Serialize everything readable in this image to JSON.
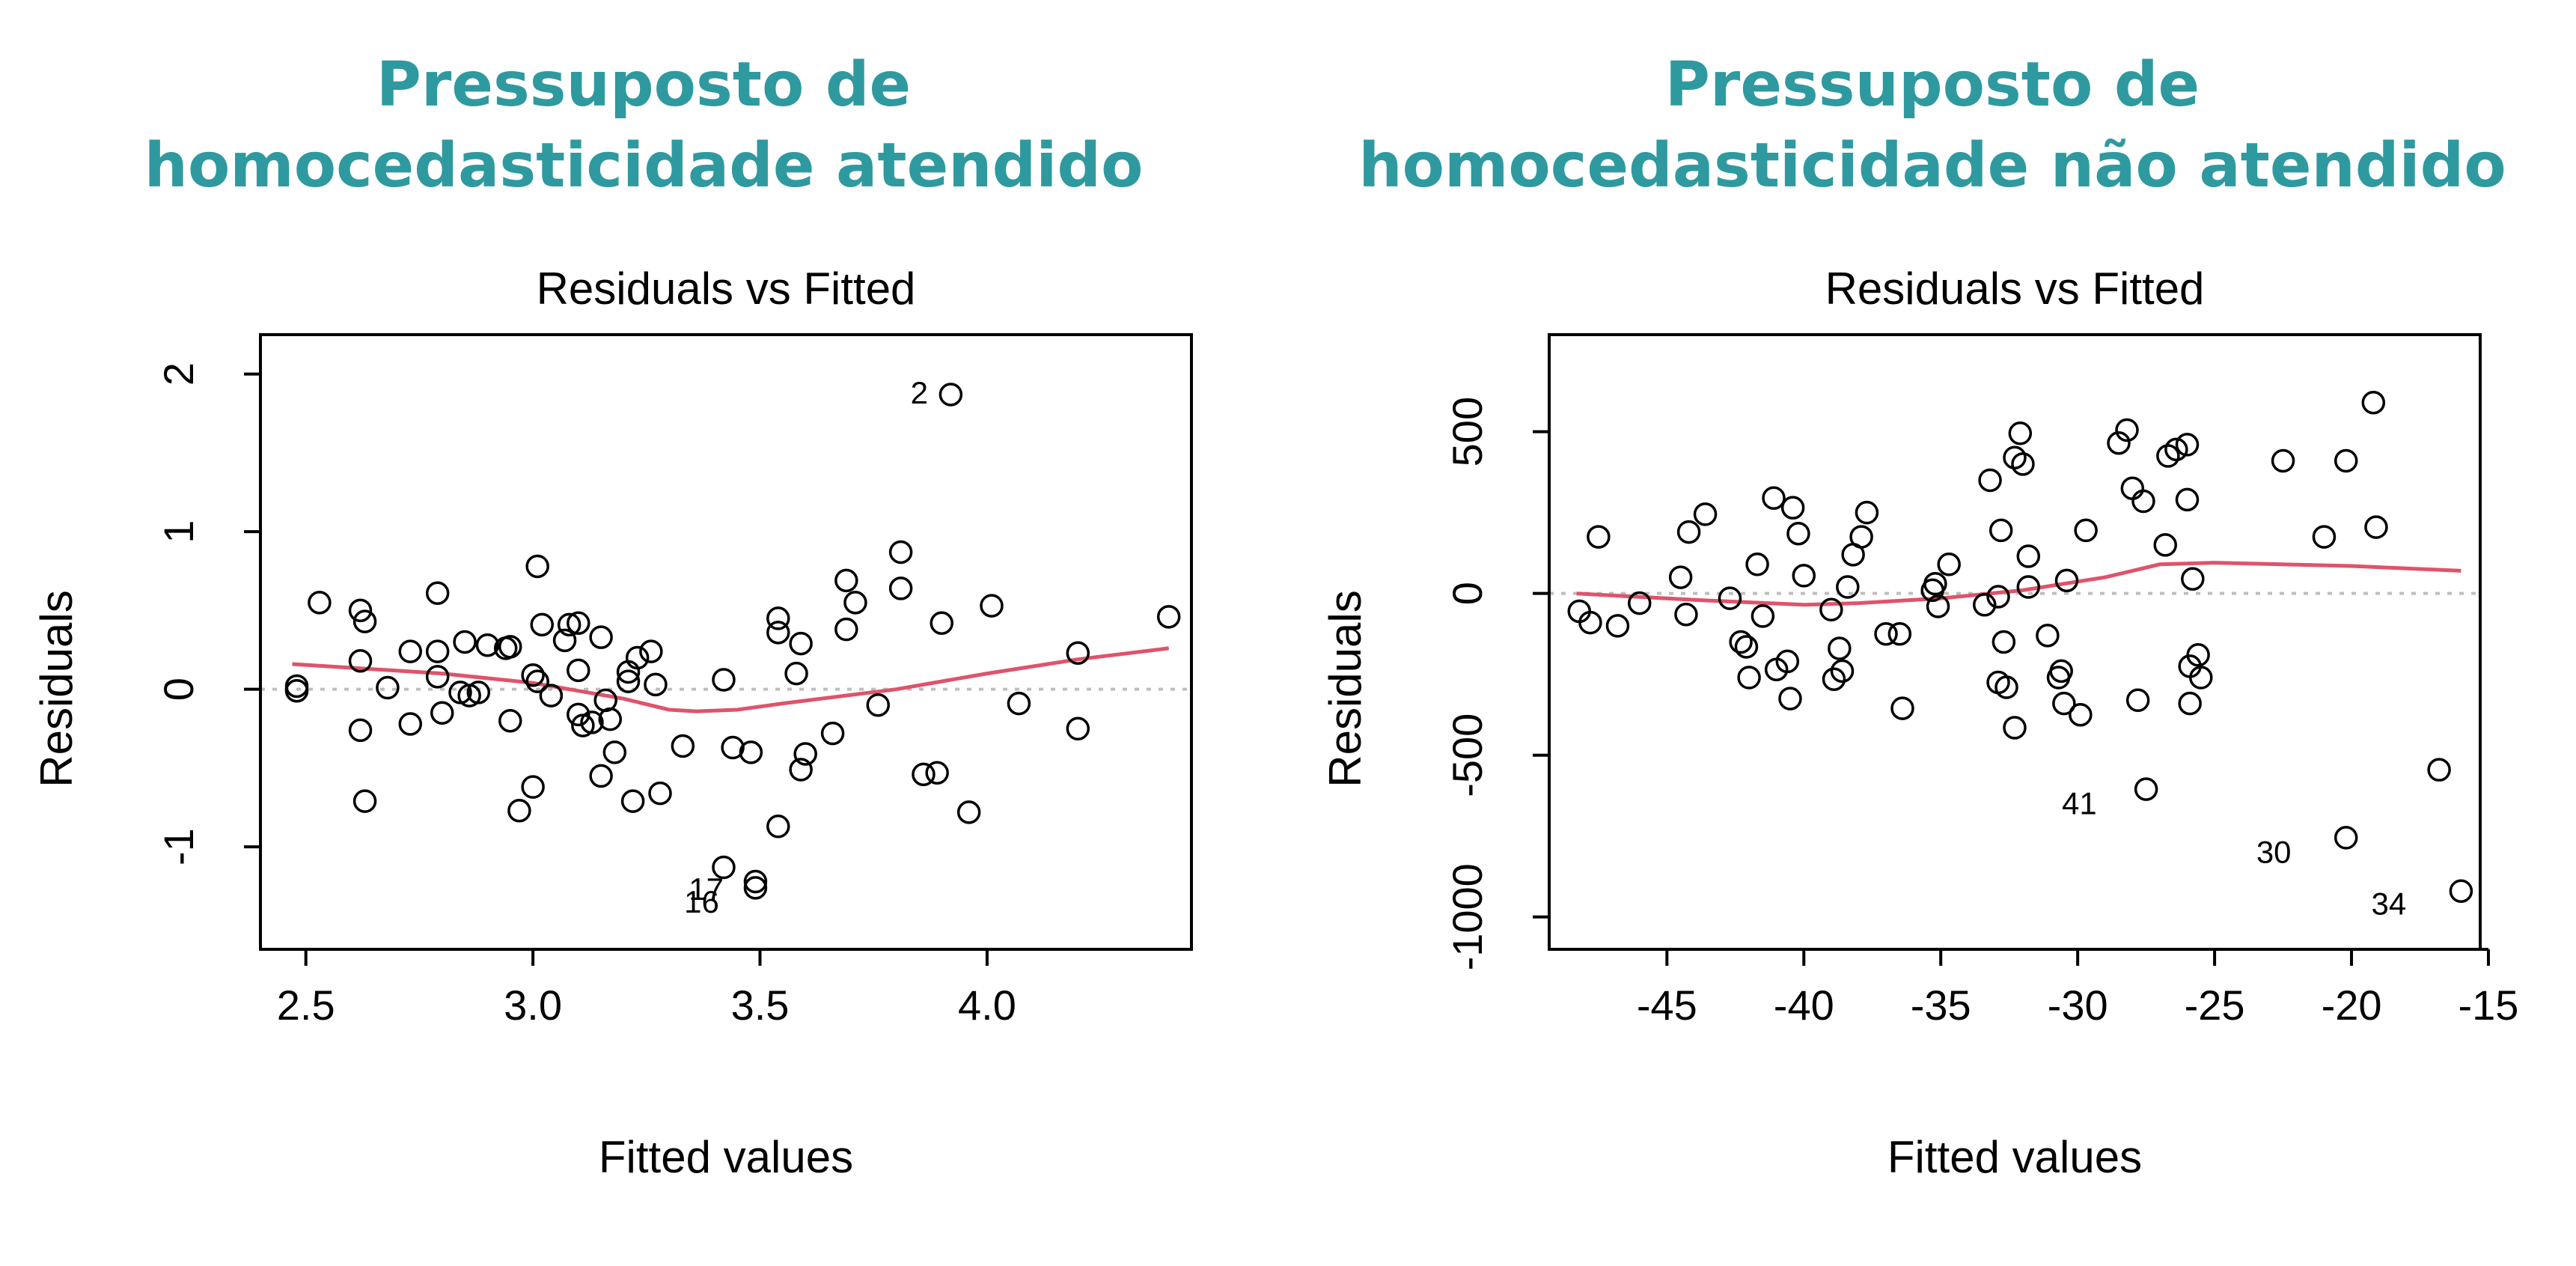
{
  "headings": {
    "left": {
      "line1": "Pressuposto de",
      "line2": "homocedasticidade atendido"
    },
    "right": {
      "line1": "Pressuposto de",
      "line2": "homocedasticidade não atendido"
    }
  },
  "colors": {
    "heading": "#2e9aa0",
    "smooth": "#df536b",
    "zero_line": "#bebebe",
    "points": "#000000"
  },
  "chart_data": [
    {
      "type": "scatter",
      "title": "Residuals vs Fitted",
      "xlabel": "Fitted values",
      "ylabel": "Residuals",
      "xlim": [
        2.4,
        4.45
      ],
      "ylim": [
        -1.65,
        2.25
      ],
      "xticks": [
        2.5,
        3.0,
        3.5,
        4.0
      ],
      "xtick_labels": [
        "2.5",
        "3.0",
        "3.5",
        "4.0"
      ],
      "yticks": [
        -1,
        0,
        1,
        2
      ],
      "ytick_labels": [
        "-1",
        "0",
        "1",
        "2"
      ],
      "points": [
        [
          2.48,
          0.02
        ],
        [
          2.48,
          -0.01
        ],
        [
          2.53,
          0.55
        ],
        [
          2.62,
          0.18
        ],
        [
          2.62,
          0.5
        ],
        [
          2.63,
          0.43
        ],
        [
          2.62,
          -0.26
        ],
        [
          2.63,
          -0.71
        ],
        [
          2.68,
          0.01
        ],
        [
          2.73,
          0.24
        ],
        [
          2.73,
          -0.22
        ],
        [
          2.79,
          0.61
        ],
        [
          2.79,
          0.24
        ],
        [
          2.79,
          0.08
        ],
        [
          2.8,
          -0.15
        ],
        [
          2.84,
          -0.02
        ],
        [
          2.85,
          0.3
        ],
        [
          2.86,
          -0.04
        ],
        [
          2.88,
          -0.02
        ],
        [
          2.9,
          0.28
        ],
        [
          2.94,
          0.26
        ],
        [
          2.95,
          0.27
        ],
        [
          2.95,
          -0.2
        ],
        [
          2.97,
          -0.77
        ],
        [
          3.0,
          0.09
        ],
        [
          3.01,
          0.78
        ],
        [
          3.01,
          0.05
        ],
        [
          3.02,
          0.41
        ],
        [
          3.0,
          -0.62
        ],
        [
          3.04,
          -0.04
        ],
        [
          3.07,
          0.31
        ],
        [
          3.08,
          0.41
        ],
        [
          3.1,
          0.42
        ],
        [
          3.1,
          0.12
        ],
        [
          3.1,
          -0.16
        ],
        [
          3.11,
          -0.23
        ],
        [
          3.13,
          -0.21
        ],
        [
          3.15,
          0.33
        ],
        [
          3.16,
          -0.07
        ],
        [
          3.17,
          -0.19
        ],
        [
          3.15,
          -0.55
        ],
        [
          3.18,
          -0.4
        ],
        [
          3.21,
          0.05
        ],
        [
          3.21,
          0.11
        ],
        [
          3.22,
          -0.71
        ],
        [
          3.23,
          0.2
        ],
        [
          3.26,
          0.24
        ],
        [
          3.27,
          0.03
        ],
        [
          3.28,
          -0.66
        ],
        [
          3.33,
          -0.36
        ],
        [
          3.42,
          0.06
        ],
        [
          3.44,
          -0.37
        ],
        [
          3.42,
          -1.13
        ],
        [
          3.48,
          -0.4
        ],
        [
          3.49,
          -1.22
        ],
        [
          3.49,
          -1.26
        ],
        [
          3.54,
          0.45
        ],
        [
          3.54,
          0.36
        ],
        [
          3.54,
          -0.87
        ],
        [
          3.58,
          0.1
        ],
        [
          3.59,
          0.29
        ],
        [
          3.59,
          -0.51
        ],
        [
          3.6,
          -0.41
        ],
        [
          3.66,
          -0.28
        ],
        [
          3.69,
          0.38
        ],
        [
          3.69,
          0.69
        ],
        [
          3.71,
          0.55
        ],
        [
          3.76,
          -0.1
        ],
        [
          3.81,
          0.87
        ],
        [
          3.81,
          0.64
        ],
        [
          3.86,
          -0.54
        ],
        [
          3.89,
          -0.53
        ],
        [
          3.9,
          0.42
        ],
        [
          3.92,
          1.87
        ],
        [
          3.96,
          -0.78
        ],
        [
          4.01,
          0.53
        ],
        [
          4.07,
          -0.09
        ],
        [
          4.2,
          0.23
        ],
        [
          4.2,
          -0.25
        ],
        [
          4.4,
          0.46
        ]
      ],
      "smooth": [
        [
          2.47,
          0.16
        ],
        [
          2.8,
          0.1
        ],
        [
          3.0,
          0.04
        ],
        [
          3.2,
          -0.06
        ],
        [
          3.3,
          -0.13
        ],
        [
          3.36,
          -0.14
        ],
        [
          3.45,
          -0.13
        ],
        [
          3.55,
          -0.09
        ],
        [
          3.8,
          0.0
        ],
        [
          4.0,
          0.1
        ],
        [
          4.2,
          0.19
        ],
        [
          4.4,
          0.26
        ]
      ],
      "labels": [
        {
          "text": "2",
          "x": 3.87,
          "y": 1.88
        },
        {
          "text": "17",
          "x": 3.42,
          "y": -1.27
        },
        {
          "text": "16",
          "x": 3.41,
          "y": -1.35
        }
      ]
    },
    {
      "type": "scatter",
      "title": "Residuals vs Fitted",
      "xlabel": "Fitted values",
      "ylabel": "Residuals",
      "xlim": [
        -49.3,
        -15.3
      ],
      "ylim": [
        -1100,
        800
      ],
      "xticks": [
        -45,
        -40,
        -35,
        -30,
        -25,
        -20,
        -15
      ],
      "xtick_labels": [
        "-45",
        "-40",
        "-35",
        "-30",
        "-25",
        "-20",
        "-15"
      ],
      "yticks": [
        -1000,
        -500,
        0,
        500
      ],
      "ytick_labels": [
        "-1000",
        "-500",
        "0",
        "500"
      ],
      "points": [
        [
          -48.2,
          -55
        ],
        [
          -47.8,
          -90
        ],
        [
          -47.5,
          175
        ],
        [
          -46.8,
          -100
        ],
        [
          -46.0,
          -30
        ],
        [
          -44.5,
          50
        ],
        [
          -44.3,
          -65
        ],
        [
          -44.2,
          190
        ],
        [
          -43.6,
          245
        ],
        [
          -42.7,
          -15
        ],
        [
          -42.3,
          -150
        ],
        [
          -42.1,
          -165
        ],
        [
          -42.0,
          -260
        ],
        [
          -41.7,
          90
        ],
        [
          -41.5,
          -70
        ],
        [
          -41.1,
          295
        ],
        [
          -41.0,
          -235
        ],
        [
          -40.6,
          -210
        ],
        [
          -40.5,
          -325
        ],
        [
          -40.4,
          265
        ],
        [
          -40.2,
          185
        ],
        [
          -40.0,
          55
        ],
        [
          -39.0,
          -50
        ],
        [
          -38.9,
          -265
        ],
        [
          -38.7,
          -170
        ],
        [
          -38.6,
          -240
        ],
        [
          -38.4,
          20
        ],
        [
          -38.2,
          120
        ],
        [
          -37.9,
          175
        ],
        [
          -37.7,
          250
        ],
        [
          -37.0,
          -125
        ],
        [
          -36.5,
          -125
        ],
        [
          -36.4,
          -355
        ],
        [
          -35.3,
          10
        ],
        [
          -35.2,
          30
        ],
        [
          -35.1,
          -40
        ],
        [
          -34.7,
          90
        ],
        [
          -33.4,
          -35
        ],
        [
          -33.2,
          350
        ],
        [
          -32.9,
          -10
        ],
        [
          -32.9,
          -275
        ],
        [
          -32.8,
          195
        ],
        [
          -32.7,
          -150
        ],
        [
          -32.6,
          -290
        ],
        [
          -32.3,
          -415
        ],
        [
          -32.3,
          420
        ],
        [
          -32.1,
          495
        ],
        [
          -32.0,
          400
        ],
        [
          -31.8,
          20
        ],
        [
          -31.8,
          115
        ],
        [
          -31.1,
          -130
        ],
        [
          -30.7,
          -260
        ],
        [
          -30.6,
          -240
        ],
        [
          -30.5,
          -340
        ],
        [
          -30.4,
          40
        ],
        [
          -29.9,
          -375
        ],
        [
          -29.7,
          195
        ],
        [
          -28.5,
          465
        ],
        [
          -28.2,
          505
        ],
        [
          -28.0,
          325
        ],
        [
          -27.8,
          -330
        ],
        [
          -27.6,
          285
        ],
        [
          -27.5,
          -605
        ],
        [
          -26.8,
          150
        ],
        [
          -26.7,
          425
        ],
        [
          -26.4,
          445
        ],
        [
          -26.0,
          460
        ],
        [
          -26.0,
          290
        ],
        [
          -25.9,
          -340
        ],
        [
          -25.9,
          -225
        ],
        [
          -25.8,
          45
        ],
        [
          -25.6,
          -190
        ],
        [
          -25.5,
          -260
        ],
        [
          -22.5,
          410
        ],
        [
          -21.0,
          175
        ],
        [
          -20.2,
          410
        ],
        [
          -20.2,
          -755
        ],
        [
          -19.2,
          590
        ],
        [
          -19.1,
          205
        ],
        [
          -16.8,
          -545
        ],
        [
          -16.0,
          -920
        ]
      ],
      "smooth": [
        [
          -48.3,
          0
        ],
        [
          -44,
          -20
        ],
        [
          -40,
          -35
        ],
        [
          -38,
          -30
        ],
        [
          -35,
          -15
        ],
        [
          -32,
          10
        ],
        [
          -29,
          50
        ],
        [
          -27,
          90
        ],
        [
          -25,
          95
        ],
        [
          -20,
          85
        ],
        [
          -16,
          70
        ]
      ],
      "labels": [
        {
          "text": "41",
          "x": -29.3,
          "y": -650
        },
        {
          "text": "30",
          "x": -22.2,
          "y": -800
        },
        {
          "text": "34",
          "x": -18.0,
          "y": -960
        }
      ]
    }
  ]
}
